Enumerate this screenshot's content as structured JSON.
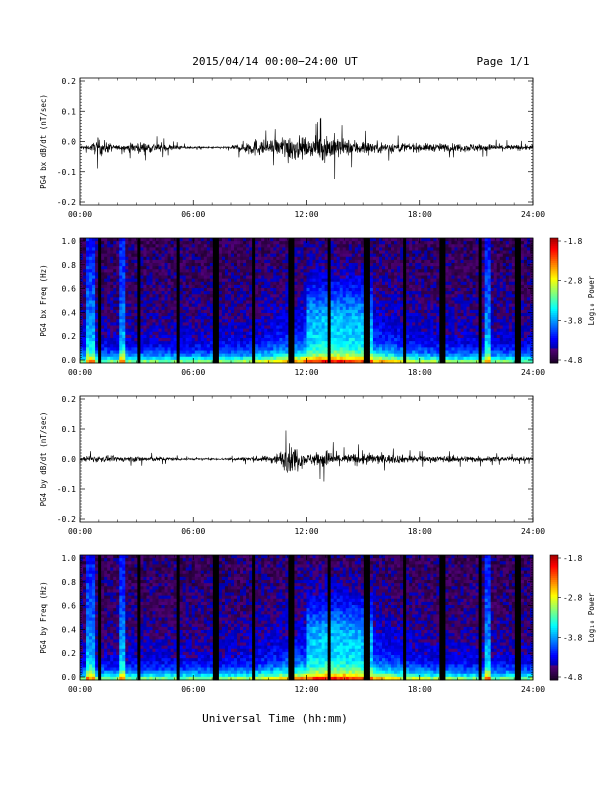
{
  "header": {
    "title": "2015/04/14  00:00−24:00 UT",
    "page": "Page 1/1"
  },
  "footer": {
    "xlabel": "Universal Time (hh:mm)"
  },
  "colorbar": {
    "ticks": [
      "-1.8",
      "-2.8",
      "-3.8",
      "-4.8"
    ],
    "label": "Log₁₀ Power"
  },
  "chart_data": [
    {
      "type": "line",
      "ylabel": "PG4 bx dB/dt (nT/sec)",
      "ylim": [
        -0.2,
        0.2
      ],
      "yticks": [
        "0.2",
        "0.1",
        "0.0",
        "-0.1",
        "-0.2"
      ],
      "xlim": [
        "00:00",
        "24:00"
      ],
      "xticks": [
        "00:00",
        "06:00",
        "12:00",
        "18:00",
        "24:00"
      ],
      "envelope": {
        "x_hours": [
          0,
          0.5,
          1.0,
          1.3,
          2.0,
          3.0,
          4.0,
          5.0,
          6.0,
          7.0,
          8.0,
          8.8,
          9.3,
          10.0,
          10.5,
          11.0,
          11.4,
          12.0,
          12.5,
          13.0,
          13.5,
          14.0,
          14.5,
          15.0,
          15.5,
          16.0,
          17.0,
          18.0,
          19.0,
          20.0,
          21.0,
          22.0,
          23.0,
          24.0
        ],
        "amplitude": [
          0.015,
          0.012,
          0.06,
          0.04,
          0.012,
          0.035,
          0.03,
          0.015,
          0.006,
          0.005,
          0.008,
          0.04,
          0.055,
          0.04,
          0.05,
          0.1,
          0.08,
          0.05,
          0.06,
          0.09,
          0.08,
          0.05,
          0.05,
          0.045,
          0.035,
          0.035,
          0.03,
          0.025,
          0.025,
          0.025,
          0.025,
          0.02,
          0.018,
          0.015
        ],
        "baseline": -0.02
      }
    },
    {
      "type": "heatmap",
      "ylabel": "PG4 bx Freq (Hz)",
      "ylim": [
        0.0,
        1.0
      ],
      "yticks": [
        "1.0",
        "0.8",
        "0.6",
        "0.4",
        "0.2",
        "0.0"
      ],
      "xlim": [
        "00:00",
        "24:00"
      ],
      "xticks": [
        "00:00",
        "06:00",
        "12:00",
        "18:00",
        "24:00"
      ],
      "color_range": [
        -4.8,
        -1.8
      ],
      "data_gaps_hours": [
        1.1,
        3.1,
        5.2,
        7.2,
        9.2,
        11.2,
        13.2,
        15.2,
        17.2,
        19.2,
        21.2,
        23.2
      ]
    },
    {
      "type": "line",
      "ylabel": "PG4 by dB/dt (nT/sec)",
      "ylim": [
        -0.2,
        0.2
      ],
      "yticks": [
        "0.2",
        "0.1",
        "0.0",
        "-0.1",
        "-0.2"
      ],
      "xlim": [
        "00:00",
        "24:00"
      ],
      "xticks": [
        "00:00",
        "06:00",
        "12:00",
        "18:00",
        "24:00"
      ],
      "envelope": {
        "x_hours": [
          0,
          0.5,
          1.0,
          2.0,
          3.0,
          4.0,
          5.0,
          6.0,
          7.0,
          8.0,
          9.0,
          10.0,
          10.5,
          11.0,
          11.3,
          11.7,
          12.0,
          12.5,
          13.0,
          13.5,
          14.0,
          14.5,
          15.0,
          15.5,
          16.0,
          17.0,
          18.0,
          19.0,
          20.0,
          21.0,
          22.0,
          23.0,
          24.0
        ],
        "amplitude": [
          0.012,
          0.02,
          0.02,
          0.015,
          0.018,
          0.015,
          0.01,
          0.005,
          0.004,
          0.008,
          0.015,
          0.02,
          0.04,
          0.08,
          0.09,
          0.06,
          0.03,
          0.045,
          0.06,
          0.04,
          0.03,
          0.035,
          0.04,
          0.035,
          0.03,
          0.025,
          0.02,
          0.02,
          0.02,
          0.02,
          0.015,
          0.013,
          0.012
        ],
        "baseline": 0.0
      }
    },
    {
      "type": "heatmap",
      "ylabel": "PG4 by Freq (Hz)",
      "ylim": [
        0.0,
        1.0
      ],
      "yticks": [
        "1.0",
        "0.8",
        "0.6",
        "0.4",
        "0.2",
        "0.0"
      ],
      "xlim": [
        "00:00",
        "24:00"
      ],
      "xticks": [
        "00:00",
        "06:00",
        "12:00",
        "18:00",
        "24:00"
      ],
      "color_range": [
        -4.8,
        -1.8
      ],
      "data_gaps_hours": [
        1.1,
        3.1,
        5.2,
        7.2,
        9.2,
        11.2,
        13.2,
        15.2,
        17.2,
        19.2,
        21.2,
        23.2
      ]
    }
  ]
}
